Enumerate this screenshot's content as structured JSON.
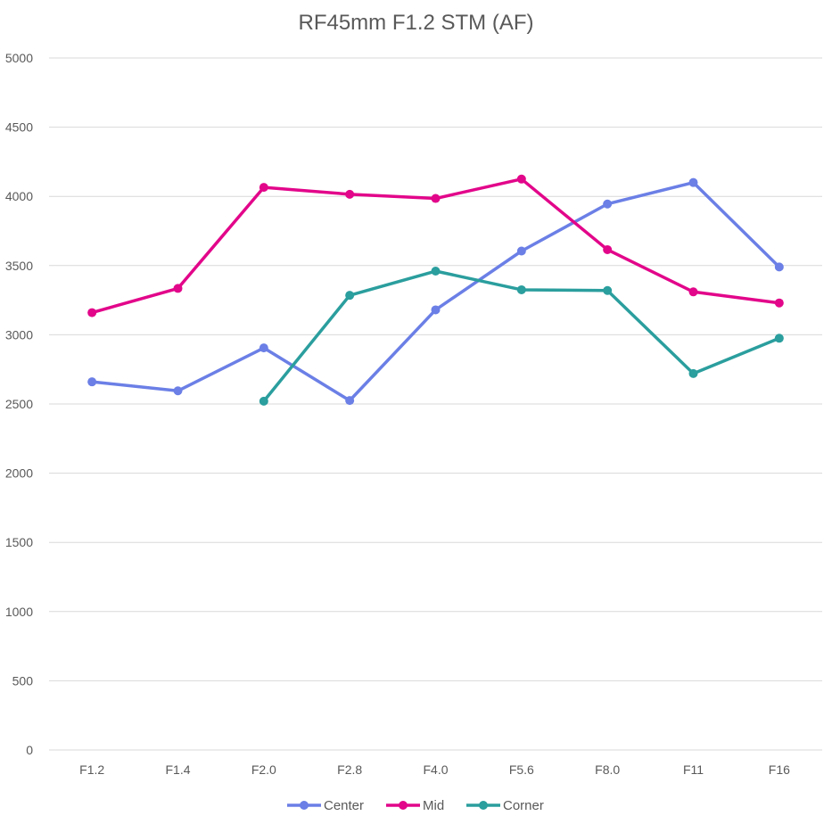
{
  "chart_data": {
    "type": "line",
    "title": "RF45mm F1.2 STM (AF)",
    "categories": [
      "F1.2",
      "F1.4",
      "F2.0",
      "F2.8",
      "F4.0",
      "F5.6",
      "F8.0",
      "F11",
      "F16"
    ],
    "ylim": [
      0,
      5000
    ],
    "yticks": [
      0,
      500,
      1000,
      1500,
      2000,
      2500,
      3000,
      3500,
      4000,
      4500,
      5000
    ],
    "grid": true,
    "legend_position": "bottom",
    "series": [
      {
        "name": "Center",
        "color": "#6B7FE6",
        "values": [
          2660,
          2595,
          2905,
          2525,
          3180,
          3605,
          3945,
          4100,
          3490
        ]
      },
      {
        "name": "Mid",
        "color": "#E2068A",
        "values": [
          3160,
          3335,
          4065,
          4015,
          3985,
          4125,
          3615,
          3310,
          3230
        ]
      },
      {
        "name": "Corner",
        "color": "#2B9E9E",
        "values": [
          null,
          null,
          2520,
          3285,
          3460,
          3325,
          3320,
          2720,
          2975
        ]
      }
    ]
  }
}
